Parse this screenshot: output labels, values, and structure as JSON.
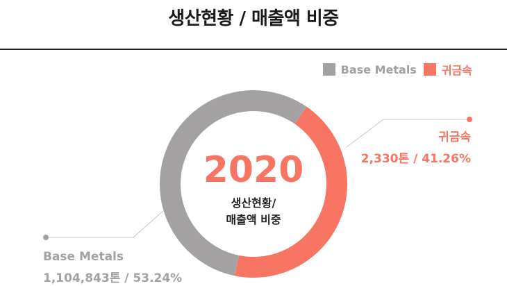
{
  "header": {
    "title": "생산현황 / 매출액 비중"
  },
  "colors": {
    "base": "#a3a1a1",
    "precious": "#f87563",
    "leader": "#c4c4c4"
  },
  "chart_data": {
    "type": "pie",
    "title": "생산현황 / 매출액 비중",
    "center_year": "2020",
    "center_label_1": "생산현황/",
    "center_label_2": "매출액 비중",
    "legend_position": "top-right",
    "slices": [
      {
        "name": "Base Metals",
        "value": 53.24,
        "detail": "1,104,843톤 / 53.24%"
      },
      {
        "name": "귀금속",
        "value": 41.26,
        "detail": "2,330톤 / 41.26%"
      }
    ]
  }
}
